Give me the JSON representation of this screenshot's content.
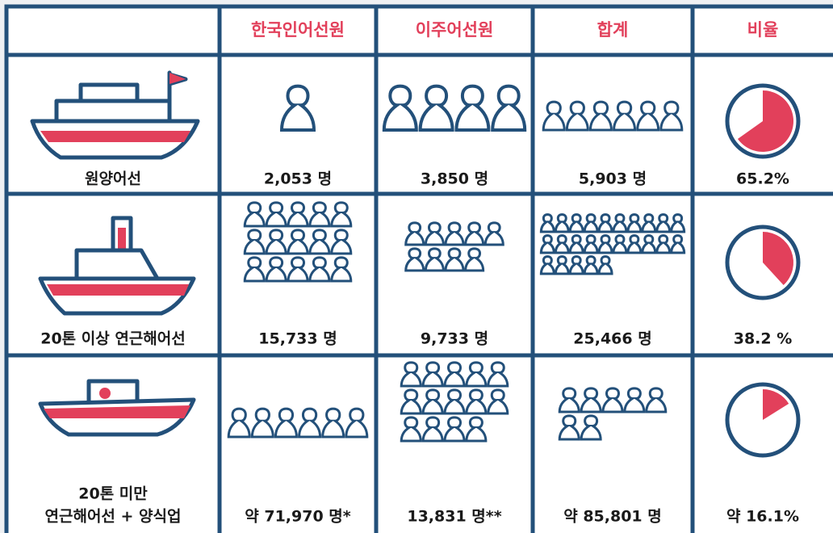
{
  "header": {
    "columns": [
      "한국인어선원",
      "이주어선원",
      "합계",
      "비율"
    ]
  },
  "rows": [
    {
      "label": [
        "원양어선"
      ],
      "korean": "2,053 명",
      "migrant": "3,850 명",
      "total": "5,903 명",
      "ratio": {
        "value": 65.2,
        "label": "65.2%"
      }
    },
    {
      "label": [
        "20톤 이상 연근해어선"
      ],
      "korean": "15,733 명",
      "migrant": "9,733 명",
      "total": "25,466 명",
      "ratio": {
        "value": 38.2,
        "label": "38.2 %"
      }
    },
    {
      "label": [
        "20톤 미만",
        "연근해어선 + 양식업"
      ],
      "korean": "약 71,970 명*",
      "migrant": "13,831 명**",
      "total": "약 85,801 명",
      "ratio": {
        "value": 16.1,
        "label": "약 16.1%"
      }
    }
  ]
}
